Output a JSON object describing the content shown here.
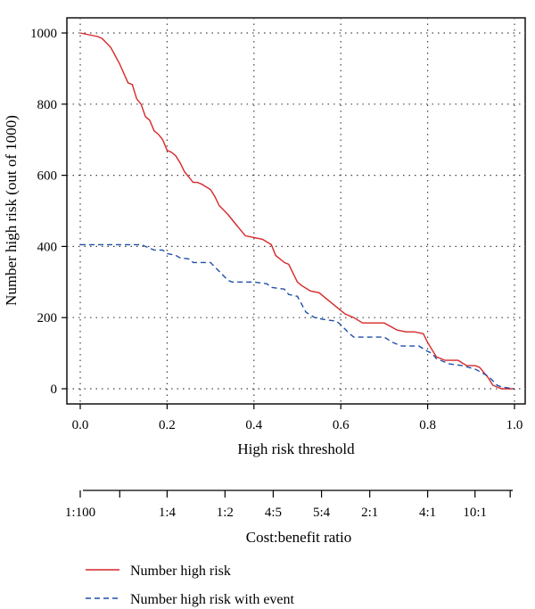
{
  "chart_data": {
    "type": "line",
    "xlabel": "High risk threshold",
    "ylabel": "Number high risk (out of 1000)",
    "xlim": [
      0,
      1
    ],
    "ylim": [
      0,
      1000
    ],
    "x_ticks": [
      "0.0",
      "0.2",
      "0.4",
      "0.6",
      "0.8",
      "1.0"
    ],
    "y_ticks": [
      "0",
      "200",
      "400",
      "600",
      "800",
      "1000"
    ],
    "x_tick_values": [
      0,
      0.2,
      0.4,
      0.6,
      0.8,
      1.0
    ],
    "y_tick_values": [
      0,
      200,
      400,
      600,
      800,
      1000
    ],
    "grid": true,
    "legend_placement": "bottom-left",
    "secondary_axis": {
      "label": "Cost:benefit ratio",
      "ticks": [
        {
          "x": 0.0,
          "label": "1:100"
        },
        {
          "x": 0.0909,
          "label": ""
        },
        {
          "x": 0.2,
          "label": "1:4"
        },
        {
          "x": 0.3333,
          "label": "1:2"
        },
        {
          "x": 0.4444,
          "label": "4:5"
        },
        {
          "x": 0.5556,
          "label": "5:4"
        },
        {
          "x": 0.6667,
          "label": "2:1"
        },
        {
          "x": 0.8,
          "label": "4:1"
        },
        {
          "x": 0.9091,
          "label": "10:1"
        },
        {
          "x": 0.9901,
          "label": ""
        }
      ]
    },
    "series": [
      {
        "name": "Number high risk",
        "color": "#d62728",
        "dash": "solid",
        "x": [
          0.0,
          0.04,
          0.05,
          0.07,
          0.09,
          0.11,
          0.12,
          0.13,
          0.14,
          0.15,
          0.16,
          0.17,
          0.18,
          0.19,
          0.2,
          0.21,
          0.22,
          0.23,
          0.24,
          0.25,
          0.26,
          0.27,
          0.28,
          0.3,
          0.31,
          0.32,
          0.34,
          0.36,
          0.38,
          0.4,
          0.42,
          0.44,
          0.45,
          0.47,
          0.48,
          0.5,
          0.51,
          0.53,
          0.55,
          0.57,
          0.59,
          0.61,
          0.63,
          0.65,
          0.67,
          0.7,
          0.73,
          0.75,
          0.77,
          0.79,
          0.8,
          0.82,
          0.84,
          0.86,
          0.87,
          0.89,
          0.91,
          0.92,
          0.94,
          0.95,
          0.96,
          0.97,
          1.0
        ],
        "values": [
          1000,
          990,
          985,
          960,
          915,
          860,
          855,
          815,
          800,
          765,
          755,
          725,
          715,
          700,
          670,
          665,
          655,
          635,
          610,
          595,
          580,
          580,
          575,
          560,
          540,
          515,
          490,
          460,
          430,
          425,
          420,
          405,
          375,
          355,
          350,
          300,
          290,
          275,
          270,
          250,
          230,
          210,
          200,
          185,
          185,
          185,
          165,
          160,
          160,
          155,
          130,
          90,
          80,
          80,
          80,
          65,
          65,
          60,
          30,
          10,
          5,
          0,
          0
        ]
      },
      {
        "name": "Number high risk with event",
        "color": "#1f4fa8",
        "dash": "dashed",
        "x": [
          0.0,
          0.05,
          0.1,
          0.14,
          0.15,
          0.16,
          0.17,
          0.19,
          0.2,
          0.22,
          0.23,
          0.25,
          0.26,
          0.28,
          0.3,
          0.32,
          0.34,
          0.35,
          0.36,
          0.4,
          0.43,
          0.44,
          0.47,
          0.48,
          0.5,
          0.52,
          0.54,
          0.56,
          0.59,
          0.6,
          0.62,
          0.63,
          0.65,
          0.7,
          0.72,
          0.74,
          0.78,
          0.8,
          0.81,
          0.82,
          0.85,
          0.88,
          0.91,
          0.94,
          0.96,
          0.97,
          1.0
        ],
        "values": [
          405,
          405,
          405,
          405,
          400,
          395,
          390,
          390,
          380,
          375,
          368,
          365,
          355,
          355,
          355,
          330,
          305,
          300,
          300,
          300,
          295,
          285,
          280,
          265,
          260,
          215,
          200,
          195,
          190,
          180,
          155,
          145,
          145,
          145,
          130,
          120,
          120,
          105,
          100,
          85,
          70,
          65,
          55,
          35,
          10,
          5,
          0
        ]
      }
    ]
  }
}
